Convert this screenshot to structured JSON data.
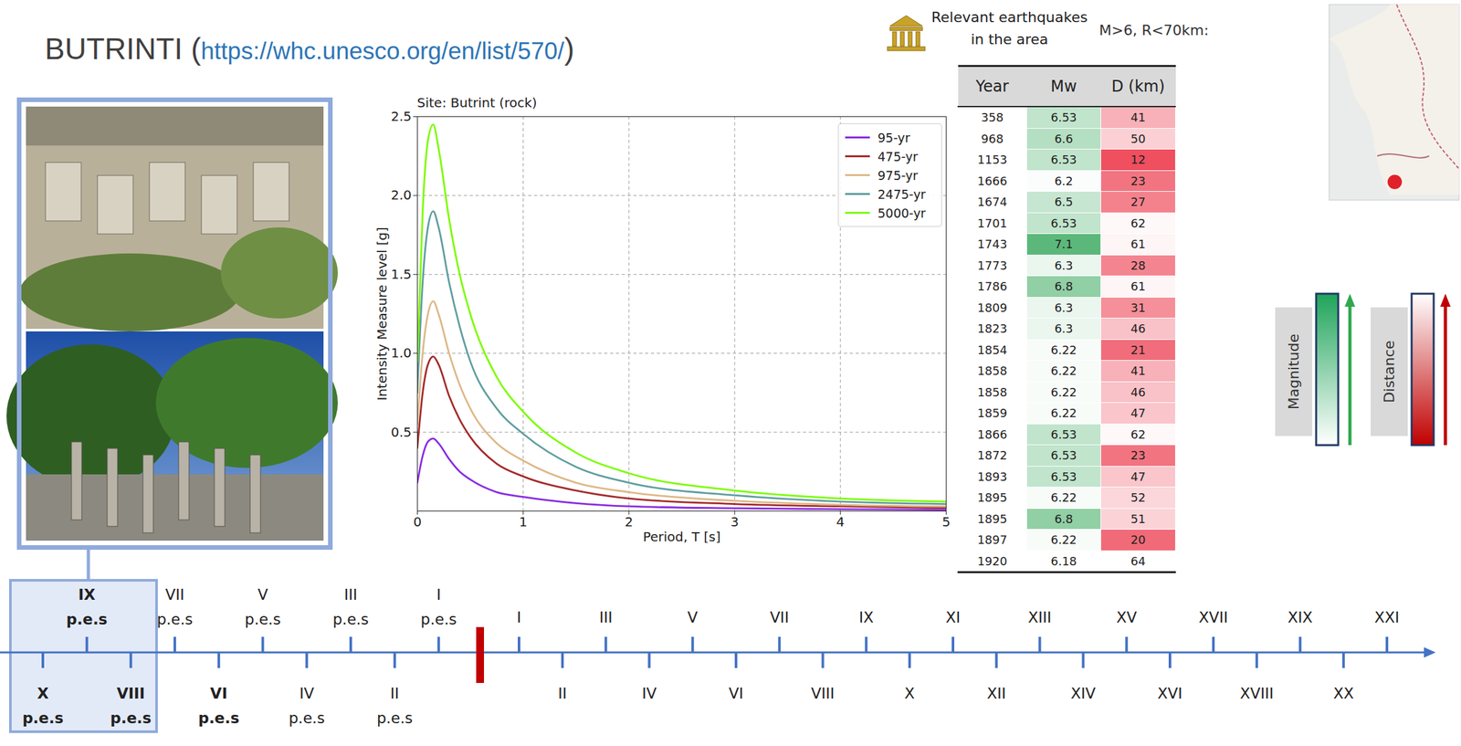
{
  "header": {
    "text": "BUTRINTI",
    "link": "https://whc.unesco.org/en/list/570/",
    "brackets": [
      "(",
      ")"
    ]
  },
  "chart_data": {
    "type": "line",
    "title": "Site: Butrint (rock)",
    "x_label": "Period, T [s]",
    "y_label": "Intensity Measure level [g]",
    "x": [
      0,
      0.05,
      0.1,
      0.15,
      0.2,
      0.3,
      0.4,
      0.5,
      0.75,
      1,
      1.5,
      2,
      3,
      4,
      5
    ],
    "series": [
      {
        "name": "95-yr",
        "color": "#8a2be2",
        "values": [
          0.18,
          0.35,
          0.44,
          0.46,
          0.43,
          0.33,
          0.25,
          0.2,
          0.12,
          0.09,
          0.05,
          0.03,
          0.018,
          0.012,
          0.008
        ]
      },
      {
        "name": "475-yr",
        "color": "#a52a2a",
        "values": [
          0.4,
          0.75,
          0.93,
          0.98,
          0.93,
          0.73,
          0.58,
          0.47,
          0.3,
          0.22,
          0.13,
          0.08,
          0.045,
          0.03,
          0.02
        ]
      },
      {
        "name": "975-yr",
        "color": "#deb887",
        "values": [
          0.55,
          1.0,
          1.25,
          1.33,
          1.25,
          1.0,
          0.8,
          0.65,
          0.43,
          0.32,
          0.18,
          0.12,
          0.065,
          0.04,
          0.03
        ]
      },
      {
        "name": "2475-yr",
        "color": "#5f9ea0",
        "values": [
          0.75,
          1.45,
          1.8,
          1.9,
          1.8,
          1.45,
          1.17,
          0.95,
          0.65,
          0.49,
          0.28,
          0.18,
          0.1,
          0.06,
          0.045
        ]
      },
      {
        "name": "5000-yr",
        "color": "#7cfc00",
        "values": [
          0.95,
          1.9,
          2.35,
          2.45,
          2.3,
          1.85,
          1.5,
          1.25,
          0.85,
          0.63,
          0.37,
          0.24,
          0.13,
          0.08,
          0.06
        ]
      }
    ],
    "xlim": [
      0,
      5
    ],
    "xticks": [
      0,
      1,
      2,
      3,
      4,
      5
    ],
    "ylim": [
      0,
      2.5
    ],
    "yticks": [
      0.5,
      {
        "value": 1,
        "label": "1.0"
      },
      1.5,
      {
        "value": 2,
        "label": "2.0"
      },
      2.5
    ],
    "grid": true,
    "legend": "upper right"
  },
  "table": {
    "caption": "Relevant earthquakes in the area",
    "filter": "M>6, R<70km:",
    "columns": [
      "Year",
      "Mw",
      "D (km)"
    ],
    "rows": [
      [
        358,
        6.53,
        41
      ],
      [
        968,
        6.6,
        50
      ],
      [
        1153,
        6.53,
        12
      ],
      [
        1666,
        6.2,
        23
      ],
      [
        1674,
        6.5,
        27
      ],
      [
        1701,
        6.53,
        62
      ],
      [
        1743,
        7.1,
        61
      ],
      [
        1773,
        6.3,
        28
      ],
      [
        1786,
        6.8,
        61
      ],
      [
        1809,
        6.3,
        31
      ],
      [
        1823,
        6.3,
        46
      ],
      [
        1854,
        6.22,
        21
      ],
      [
        1858,
        6.22,
        41
      ],
      [
        1858,
        6.22,
        46
      ],
      [
        1859,
        6.22,
        47
      ],
      [
        1866,
        6.53,
        62
      ],
      [
        1872,
        6.53,
        23
      ],
      [
        1893,
        6.53,
        47
      ],
      [
        1895,
        6.22,
        52
      ],
      [
        1895,
        6.8,
        51
      ],
      [
        1897,
        6.22,
        20
      ],
      [
        1920,
        6.18,
        64
      ]
    ]
  },
  "scale_legend": {
    "magnitude": "Magnitude",
    "distance": "Distance"
  },
  "timeline": {
    "before": [
      {
        "label": "X",
        "era": "p.e.s",
        "bold": true,
        "highlighted": true
      },
      {
        "label": "IX",
        "era": "p.e.s",
        "bold": true,
        "highlighted": true
      },
      {
        "label": "VIII",
        "era": "p.e.s",
        "bold": true,
        "highlighted": true
      },
      {
        "label": "VII",
        "era": "p.e.s",
        "bold": false,
        "highlighted": false
      },
      {
        "label": "VI",
        "era": "p.e.s",
        "bold": true,
        "highlighted": false
      },
      {
        "label": "V",
        "era": "p.e.s",
        "bold": false,
        "highlighted": false
      },
      {
        "label": "IV",
        "era": "p.e.s",
        "bold": false,
        "highlighted": false
      },
      {
        "label": "III",
        "era": "p.e.s",
        "bold": false,
        "highlighted": false
      },
      {
        "label": "II",
        "era": "p.e.s",
        "bold": false,
        "highlighted": false
      },
      {
        "label": "I",
        "era": "p.e.s",
        "bold": false,
        "highlighted": false
      }
    ],
    "after": [
      "I",
      "II",
      "III",
      "IV",
      "V",
      "VI",
      "VII",
      "VIII",
      "IX",
      "X",
      "XI",
      "XII",
      "XIII",
      "XIV",
      "XV",
      "XVI",
      "XVII",
      "XVIII",
      "XIX",
      "XX",
      "XXI"
    ]
  }
}
